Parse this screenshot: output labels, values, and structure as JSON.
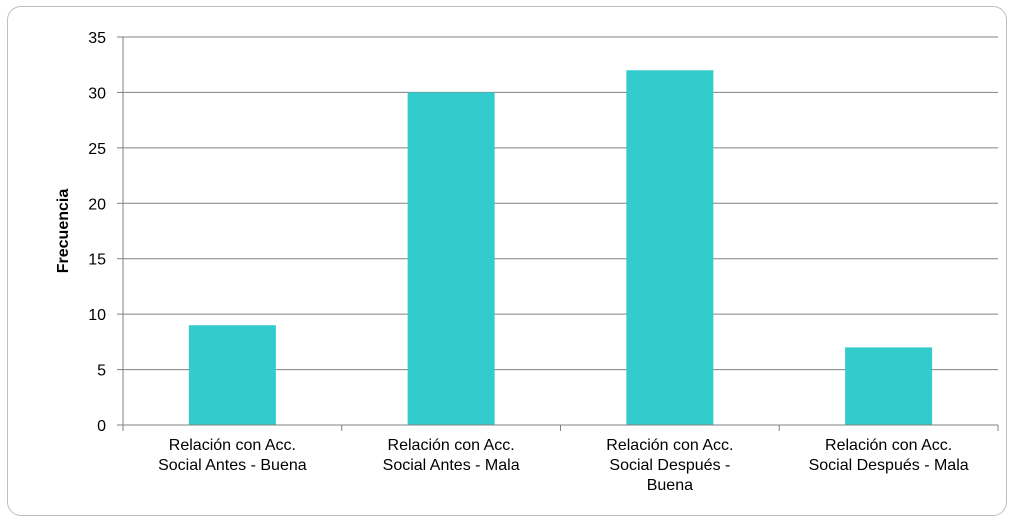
{
  "chart_data": {
    "type": "bar",
    "title": "",
    "xlabel": "",
    "ylabel": "Frecuencia",
    "categories": [
      [
        "Relación con Acc.",
        "Social Antes - Buena"
      ],
      [
        "Relación con Acc.",
        "Social Antes - Mala"
      ],
      [
        "Relación con Acc.",
        "Social Después -",
        "Buena"
      ],
      [
        "Relación con Acc.",
        "Social Después - Mala"
      ]
    ],
    "values": [
      9,
      30,
      32,
      7
    ],
    "ylim": [
      0,
      35
    ],
    "yticks": [
      0,
      5,
      10,
      15,
      20,
      25,
      30,
      35
    ],
    "grid": true,
    "legend": "none",
    "colors": {
      "bar": "#33cccc",
      "grid": "#808080",
      "axis": "#808080",
      "frame": "#bfbfbf"
    }
  }
}
